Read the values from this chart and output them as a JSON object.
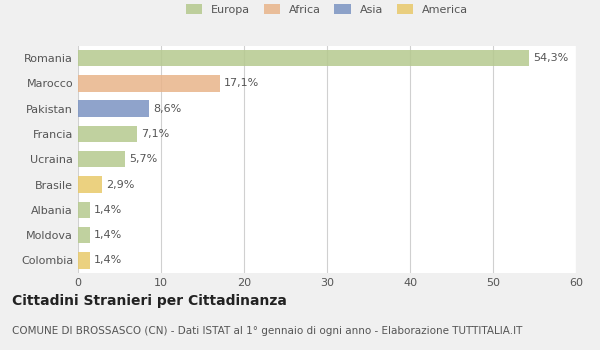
{
  "categories": [
    "Romania",
    "Marocco",
    "Pakistan",
    "Francia",
    "Ucraina",
    "Brasile",
    "Albania",
    "Moldova",
    "Colombia"
  ],
  "values": [
    54.3,
    17.1,
    8.6,
    7.1,
    5.7,
    2.9,
    1.4,
    1.4,
    1.4
  ],
  "labels": [
    "54,3%",
    "17,1%",
    "8,6%",
    "7,1%",
    "5,7%",
    "2,9%",
    "1,4%",
    "1,4%",
    "1,4%"
  ],
  "colors": [
    "#b5c98e",
    "#e8b48a",
    "#7b93c2",
    "#b5c98e",
    "#b5c98e",
    "#e8c96a",
    "#b5c98e",
    "#b5c98e",
    "#e8c96a"
  ],
  "legend_labels": [
    "Europa",
    "Africa",
    "Asia",
    "America"
  ],
  "legend_colors": [
    "#b5c98e",
    "#e8b48a",
    "#7b93c2",
    "#e8c96a"
  ],
  "xlim": [
    0,
    60
  ],
  "xticks": [
    0,
    10,
    20,
    30,
    40,
    50,
    60
  ],
  "title": "Cittadini Stranieri per Cittadinanza",
  "subtitle": "COMUNE DI BROSSASCO (CN) - Dati ISTAT al 1° gennaio di ogni anno - Elaborazione TUTTITALIA.IT",
  "bg_color": "#f0f0f0",
  "plot_bg_color": "#ffffff",
  "grid_color": "#d0d0d0",
  "bar_height": 0.65,
  "title_fontsize": 10,
  "subtitle_fontsize": 7.5,
  "label_fontsize": 8,
  "tick_fontsize": 8
}
